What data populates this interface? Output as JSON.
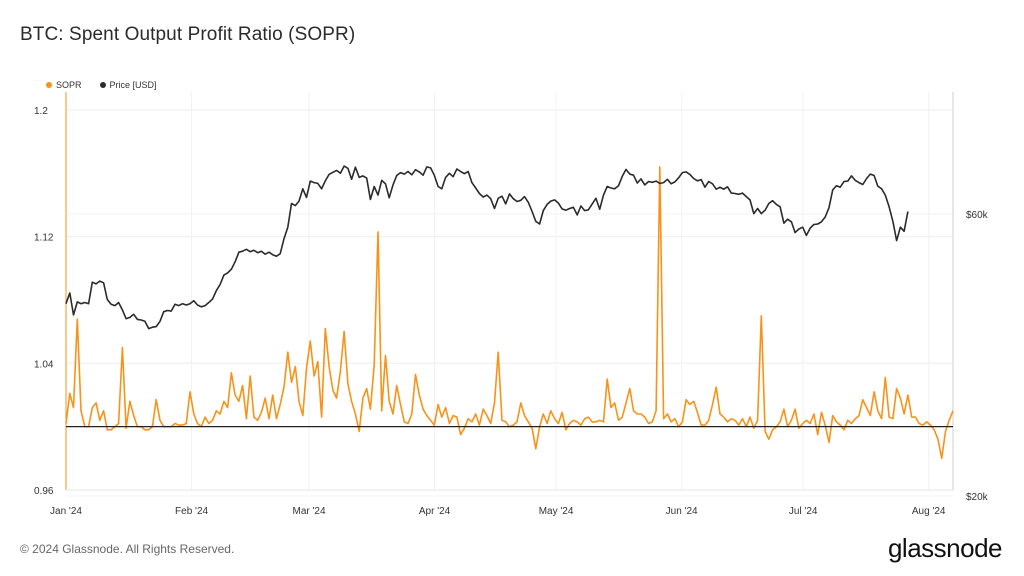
{
  "title": "BTC: Spent Output Profit Ratio (SOPR)",
  "footer": "© 2024 Glassnode. All Rights Reserved.",
  "brand": "glassnode",
  "chart_data": {
    "type": "line",
    "grid": true,
    "legend_position": "top-left",
    "x_ticks": [
      "Jan '24",
      "Feb '24",
      "Mar '24",
      "Apr '24",
      "May '24",
      "Jun '24",
      "Jul '24",
      "Aug '24"
    ],
    "y_left": {
      "ticks": [
        "0.96",
        "1.04",
        "1.12",
        "1.2"
      ],
      "range": [
        0.96,
        1.2
      ],
      "reference_line": 1.0
    },
    "y_right": {
      "ticks": [
        "$20k",
        "$60k"
      ],
      "scale": "log",
      "range": [
        20000,
        90000
      ]
    },
    "series": [
      {
        "name": "SOPR",
        "color": "#f7931a",
        "axis": "left",
        "values": [
          1.002,
          1.021,
          1.012,
          1.068,
          1.01,
          1.0,
          1.0,
          1.012,
          1.015,
          1.004,
          1.01,
          0.998,
          0.998,
          1.0,
          1.002,
          1.05,
          0.999,
          1.016,
          1.007,
          1.0,
          1.0,
          0.998,
          0.998,
          1.0,
          1.017,
          1.004,
          1.0,
          1.0,
          1.0,
          1.002,
          1.001,
          1.001,
          1.002,
          1.022,
          1.008,
          1.002,
          1.0,
          1.006,
          1.002,
          1.004,
          1.01,
          1.008,
          1.016,
          1.012,
          1.034,
          1.02,
          1.016,
          1.026,
          1.005,
          1.032,
          1.006,
          1.004,
          1.009,
          1.018,
          1.005,
          1.02,
          1.005,
          1.014,
          1.025,
          1.047,
          1.028,
          1.038,
          1.016,
          1.007,
          1.037,
          1.054,
          1.032,
          1.041,
          1.006,
          1.062,
          1.038,
          1.023,
          1.018,
          1.035,
          1.06,
          1.027,
          1.016,
          1.008,
          0.997,
          1.018,
          1.024,
          1.011,
          1.039,
          1.123,
          1.01,
          1.045,
          1.016,
          1.008,
          1.026,
          1.014,
          1.003,
          1.002,
          1.008,
          1.033,
          1.02,
          1.011,
          1.007,
          1.004,
          1.001,
          1.014,
          1.006,
          1.012,
          1.002,
          1.007,
          1.006,
          0.995,
          0.999,
          1.005,
          1.003,
          1.008,
          1.001,
          1.011,
          1.007,
          1.002,
          1.015,
          1.047,
          1.004,
          1.003,
          1.0,
          1.001,
          1.003,
          1.015,
          1.007,
          1.003,
          0.999,
          0.986,
          1.0,
          1.008,
          1.002,
          1.01,
          1.005,
          1.002,
          1.009,
          0.998,
          1.002,
          1.004,
          1.003,
          1.001,
          1.005,
          1.006,
          1.003,
          1.003,
          1.004,
          1.003,
          1.03,
          1.012,
          1.015,
          1.004,
          1.006,
          1.015,
          1.024,
          1.01,
          1.008,
          1.008,
          1.006,
          1.002,
          1.003,
          1.01,
          1.164,
          1.005,
          1.008,
          1.003,
          1.005,
          1.0,
          1.003,
          1.017,
          1.014,
          1.016,
          1.009,
          1.001,
          1.001,
          1.004,
          1.014,
          1.025,
          1.008,
          1.006,
          1.003,
          1.005,
          1.004,
          1.001,
          1.005,
          1.0,
          1.006,
          0.999,
          1.004,
          1.07,
          0.997,
          0.992,
          0.998,
          1.0,
          1.003,
          1.011,
          1.0,
          1.004,
          1.011,
          0.999,
          1.002,
          1.004,
          1.002,
          1.008,
          0.995,
          1.009,
          1.001,
          0.99,
          1.007,
          1.003,
          1.001,
          0.998,
          1.004,
          1.002,
          1.005,
          1.007,
          1.017,
          1.012,
          1.007,
          1.022,
          1.01,
          1.005,
          1.031,
          1.006,
          1.005,
          1.024,
          1.018,
          1.008,
          1.02,
          1.006,
          1.006,
          1.002,
          1.001,
          1.003,
          1.001,
          0.998,
          0.992,
          0.98,
          0.997,
          1.004,
          1.01
        ]
      },
      {
        "name": "Price [USD]",
        "color": "#2b2b2b",
        "axis": "right",
        "values": [
          42300,
          44100,
          40500,
          42600,
          42300,
          42500,
          42300,
          46000,
          45700,
          46200,
          45900,
          43000,
          42200,
          42000,
          42500,
          41300,
          39900,
          40100,
          40600,
          39800,
          39700,
          39500,
          38400,
          38600,
          38700,
          39500,
          41000,
          41200,
          41100,
          42200,
          42000,
          42300,
          42100,
          42300,
          42800,
          42100,
          41800,
          42000,
          42500,
          43100,
          44500,
          45600,
          47300,
          47700,
          48400,
          49800,
          51700,
          51900,
          52300,
          51800,
          52100,
          51600,
          51900,
          51300,
          51700,
          51200,
          50900,
          51400,
          54500,
          57000,
          62500,
          62000,
          63100,
          66200,
          64000,
          68200,
          67800,
          67600,
          66200,
          68300,
          70000,
          70600,
          71100,
          70300,
          72300,
          71700,
          68700,
          72000,
          69200,
          69600,
          69000,
          63500,
          66800,
          64600,
          68400,
          67500,
          63900,
          67200,
          69700,
          70500,
          70100,
          70800,
          69900,
          71300,
          70700,
          69800,
          72100,
          71800,
          69800,
          66800,
          66200,
          69200,
          70300,
          69400,
          71500,
          70800,
          70200,
          70800,
          67800,
          66400,
          65000,
          64100,
          64600,
          63700,
          61300,
          63800,
          64300,
          62400,
          64900,
          63700,
          63000,
          63300,
          64200,
          62800,
          60600,
          58300,
          57700,
          60800,
          62300,
          63100,
          63400,
          62600,
          61200,
          60900,
          61300,
          61600,
          59800,
          61900,
          60800,
          61000,
          62400,
          63800,
          61100,
          64600,
          66800,
          66400,
          66200,
          67000,
          69500,
          71400,
          70100,
          69800,
          67700,
          68800,
          67200,
          68100,
          67900,
          68200,
          67600,
          67800,
          68700,
          67500,
          68000,
          69100,
          70500,
          70700,
          70000,
          68900,
          68300,
          68600,
          66600,
          68100,
          67500,
          66100,
          66600,
          66100,
          66700,
          65100,
          65000,
          64800,
          65100,
          64200,
          63400,
          60100,
          61300,
          60100,
          60900,
          62500,
          63200,
          62300,
          61700,
          57900,
          58800,
          58200,
          55800,
          56600,
          57000,
          55200,
          56800,
          57600,
          57700,
          58200,
          59300,
          61500,
          65900,
          67000,
          66600,
          68100,
          68200,
          69600,
          68400,
          67800,
          67300,
          68900,
          70100,
          69700,
          66900,
          66200,
          64600,
          61700,
          58300,
          54100,
          57000,
          56100,
          60600
        ]
      }
    ]
  }
}
